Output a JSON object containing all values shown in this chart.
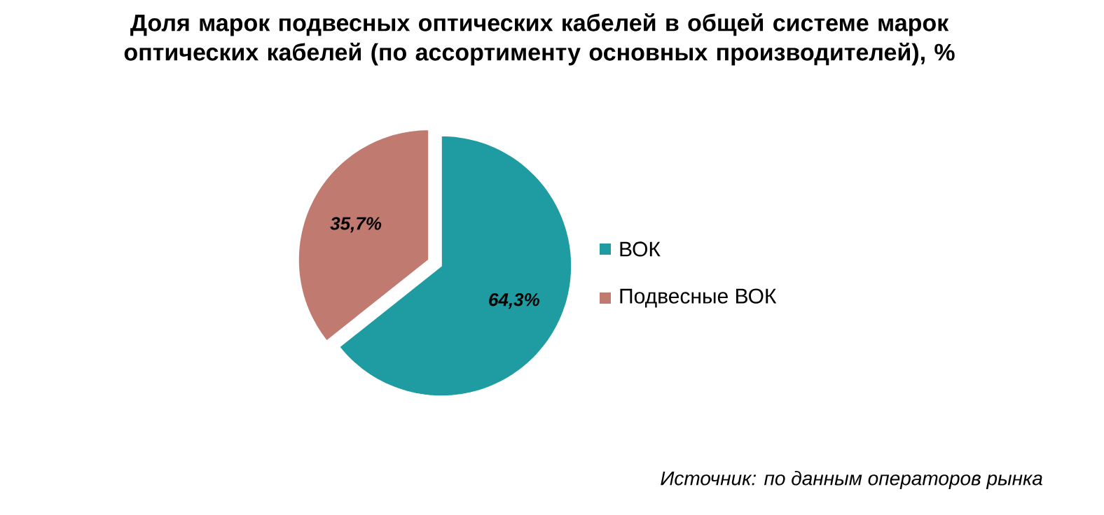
{
  "chart_data": {
    "type": "pie",
    "title": "Доля марок подвесных оптических кабелей в общей системе марок оптических кабелей (по ассортименту основных производителей), %",
    "categories": [
      "ВОК",
      "Подвесные ВОК"
    ],
    "values": [
      64.3,
      35.7
    ],
    "colors": [
      "#1f9ca1",
      "#c07a70"
    ],
    "value_labels": [
      "64,3%",
      "35,7%"
    ],
    "legend": "right",
    "annotations": [
      "Источник: по данным операторов рынка"
    ]
  }
}
